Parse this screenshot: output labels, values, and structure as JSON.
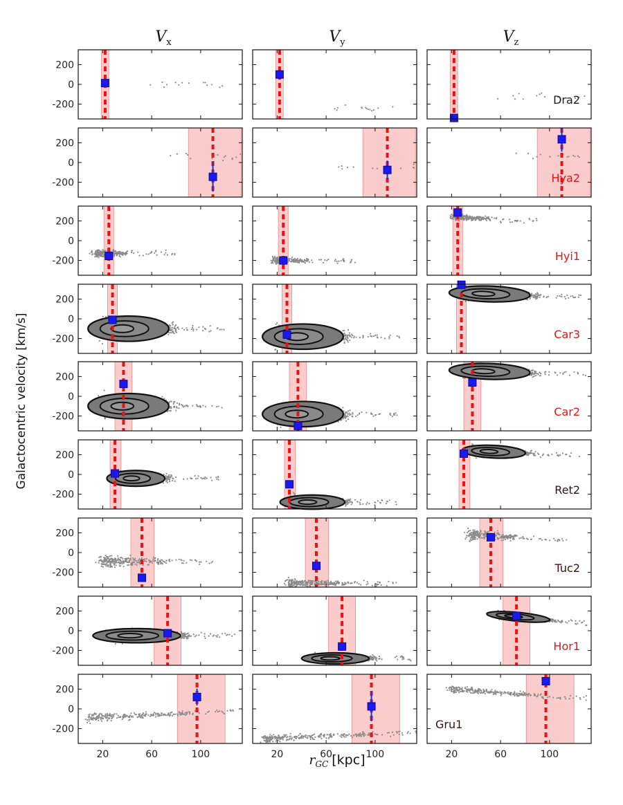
{
  "chart_data": {
    "type": "scatter",
    "title": "",
    "column_titles": [
      {
        "symbol": "V",
        "sub": "x"
      },
      {
        "symbol": "V",
        "sub": "y"
      },
      {
        "symbol": "V",
        "sub": "z"
      }
    ],
    "xlabel": {
      "symbol": "r",
      "sub": "GC",
      "unit": "[kpc]"
    },
    "ylabel": "Galactocentric velocity [km/s]",
    "xlim": [
      0,
      134
    ],
    "ylim": [
      -350,
      350
    ],
    "xticks": [
      20,
      60,
      100
    ],
    "yticks": [
      200,
      0,
      -200
    ],
    "legend_colors": {
      "red": "#ee1111",
      "dark": "#331111"
    },
    "rows": [
      {
        "name": "Dra2",
        "label_color": "dark",
        "label_col": 2,
        "label_pos": "right",
        "r": 22,
        "r_band": [
          19,
          25
        ],
        "obs": [
          13,
          100,
          -340
        ],
        "err": [
          0,
          0,
          0
        ],
        "density": "sparse"
      },
      {
        "name": "Hya2",
        "label_color": "red",
        "label_col": 2,
        "label_pos": "right",
        "r": 110,
        "r_band": [
          90,
          133
        ],
        "obs": [
          -145,
          -75,
          235
        ],
        "err": [
          150,
          95,
          125
        ],
        "density": "sparse"
      },
      {
        "name": "Hyi1",
        "label_color": "red",
        "label_col": 2,
        "label_pos": "right",
        "r": 25,
        "r_band": [
          21,
          29
        ],
        "obs": [
          -155,
          -200,
          285
        ],
        "err": [
          0,
          0,
          0
        ],
        "density": "cloud"
      },
      {
        "name": "Car3",
        "label_color": "red",
        "label_col": 2,
        "label_pos": "right",
        "r": 28,
        "r_band": [
          24,
          32
        ],
        "obs": [
          -10,
          -160,
          345
        ],
        "err": [
          0,
          0,
          0
        ],
        "density": "contour"
      },
      {
        "name": "Car2",
        "label_color": "red",
        "label_col": 2,
        "label_pos": "right",
        "r": 37,
        "r_band": [
          30,
          44
        ],
        "obs": [
          125,
          -300,
          140
        ],
        "err": [
          0,
          0,
          0
        ],
        "density": "contour"
      },
      {
        "name": "Ret2",
        "label_color": "dark",
        "label_col": 2,
        "label_pos": "right",
        "r": 30,
        "r_band": [
          26,
          35
        ],
        "obs": [
          10,
          -100,
          210
        ],
        "err": [
          0,
          0,
          0
        ],
        "density": "contour"
      },
      {
        "name": "Tuc2",
        "label_color": "dark",
        "label_col": 2,
        "label_pos": "right",
        "r": 52,
        "r_band": [
          43,
          62
        ],
        "obs": [
          -255,
          -135,
          155
        ],
        "err": [
          0,
          0,
          0
        ],
        "density": "cloud"
      },
      {
        "name": "Hor1",
        "label_color": "red",
        "label_col": 2,
        "label_pos": "right",
        "r": 73,
        "r_band": [
          62,
          84
        ],
        "obs": [
          -25,
          -160,
          150
        ],
        "err": [
          0,
          0,
          0
        ],
        "density": "contour"
      },
      {
        "name": "Gru1",
        "label_color": "dark",
        "label_col": 2,
        "label_pos": "left",
        "r": 97,
        "r_band": [
          81,
          120
        ],
        "obs": [
          120,
          25,
          280
        ],
        "err": [
          85,
          150,
          0
        ],
        "density": "cloud"
      }
    ]
  }
}
